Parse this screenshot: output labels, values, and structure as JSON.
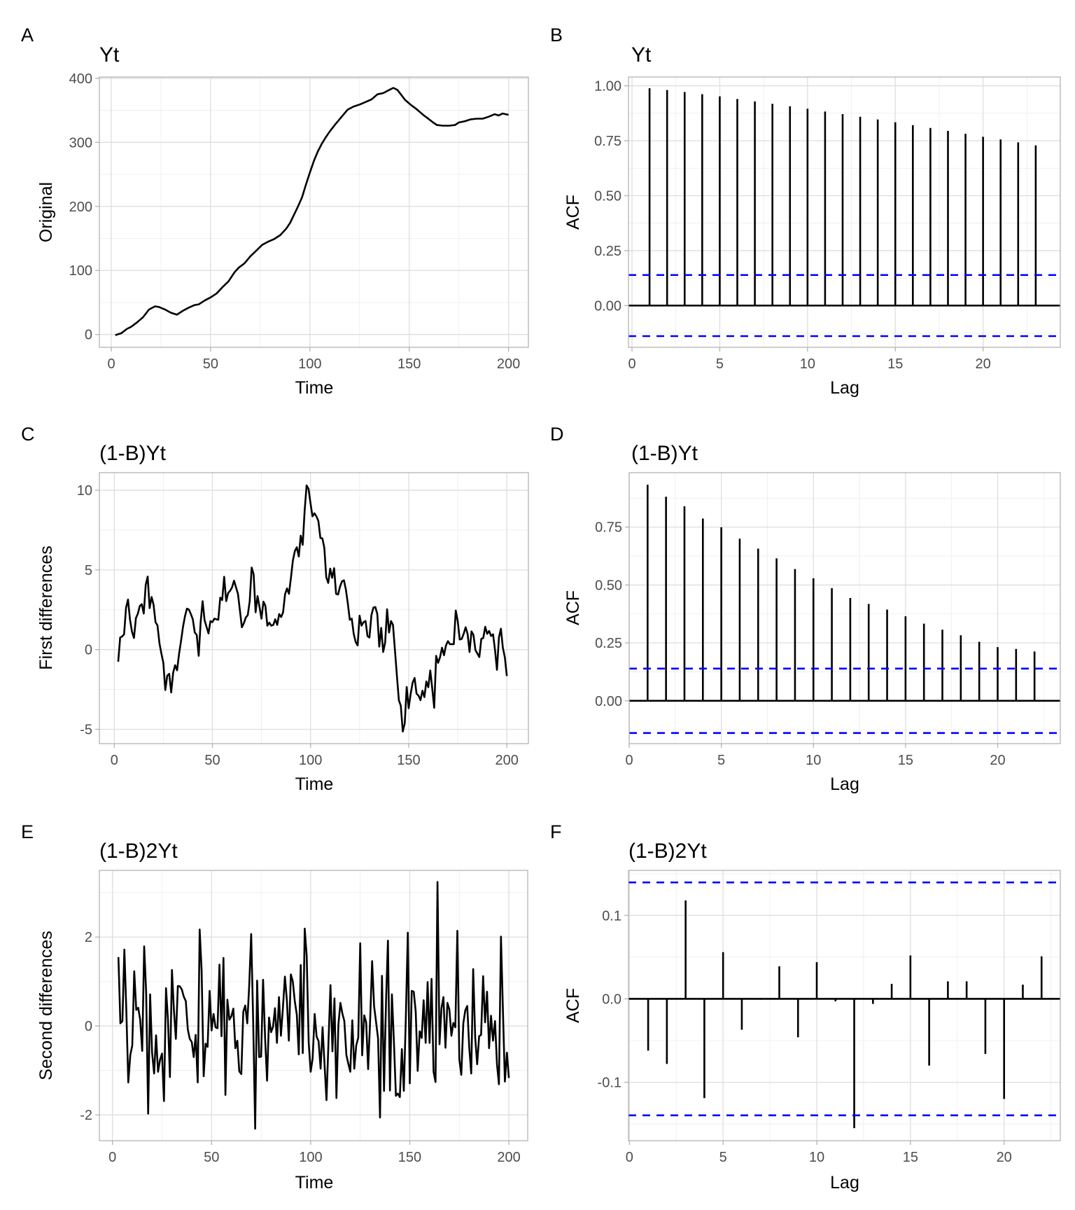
{
  "chart_data": [
    {
      "panel": "A",
      "type": "line",
      "title": "Yt",
      "xlabel": "Time",
      "ylabel": "Original",
      "xlim": [
        -6,
        210
      ],
      "ylim": [
        -20,
        402
      ],
      "xticks": [
        0,
        50,
        100,
        150,
        200
      ],
      "xtick_labels": [
        "0",
        "50",
        "100",
        "150",
        "200"
      ],
      "yticks": [
        0,
        100,
        200,
        300,
        400
      ],
      "ytick_labels": [
        "0",
        "100",
        "200",
        "300",
        "400"
      ],
      "grid": true,
      "x": [
        2,
        5,
        8,
        10,
        13,
        16,
        19,
        22,
        24,
        27,
        30,
        33,
        36,
        39,
        42,
        44,
        47,
        50,
        53,
        56,
        59,
        62,
        64,
        67,
        70,
        73,
        76,
        79,
        82,
        85,
        88,
        90,
        92,
        94,
        96,
        98,
        100,
        102,
        104,
        106,
        108,
        110,
        113,
        116,
        119,
        122,
        125,
        128,
        131,
        134,
        137,
        140,
        142,
        144,
        146,
        148,
        151,
        154,
        157,
        160,
        162,
        164,
        167,
        170,
        173,
        175,
        178,
        181,
        184,
        187,
        190,
        193,
        195,
        197,
        200
      ],
      "y": [
        -1,
        2,
        9,
        12,
        19,
        27,
        39,
        44,
        43,
        39,
        34,
        31,
        37,
        42,
        46,
        47,
        53,
        58,
        64,
        74,
        83,
        97,
        104,
        111,
        122,
        131,
        140,
        145,
        149,
        155,
        165,
        174,
        187,
        200,
        214,
        234,
        253,
        271,
        286,
        298,
        308,
        317,
        329,
        340,
        351,
        356,
        359,
        363,
        367,
        375,
        377,
        382,
        385,
        382,
        374,
        366,
        358,
        351,
        343,
        336,
        331,
        327,
        326,
        326,
        327,
        331,
        333,
        336,
        337,
        337,
        340,
        344,
        342,
        345,
        343
      ]
    },
    {
      "panel": "B",
      "type": "bar",
      "title": "Yt",
      "xlabel": "Lag",
      "ylabel": "ACF",
      "xlim": [
        -0.2,
        24.4
      ],
      "ylim": [
        -0.19,
        1.04
      ],
      "xticks": [
        0,
        5,
        10,
        15,
        20
      ],
      "xtick_labels": [
        "0",
        "5",
        "10",
        "15",
        "20"
      ],
      "yticks": [
        0,
        0.25,
        0.5,
        0.75,
        1.0
      ],
      "ytick_labels": [
        "0.00",
        "0.25",
        "0.50",
        "0.75",
        "1.00"
      ],
      "grid": true,
      "confidence_bound": 0.139,
      "confidence_color": "#0000ff",
      "lags": [
        1,
        2,
        3,
        4,
        5,
        6,
        7,
        8,
        9,
        10,
        11,
        12,
        13,
        14,
        15,
        16,
        17,
        18,
        19,
        20,
        21,
        22,
        23
      ],
      "values": [
        0.989,
        0.981,
        0.972,
        0.962,
        0.952,
        0.94,
        0.929,
        0.918,
        0.907,
        0.896,
        0.883,
        0.871,
        0.859,
        0.847,
        0.834,
        0.821,
        0.808,
        0.795,
        0.782,
        0.768,
        0.756,
        0.743,
        0.729
      ]
    },
    {
      "panel": "C",
      "type": "line",
      "title": "(1-B)Yt",
      "xlabel": "Time",
      "ylabel": "First differences",
      "xlim": [
        -7.6,
        211
      ],
      "ylim": [
        -5.9,
        11.1
      ],
      "xticks": [
        0,
        50,
        100,
        150,
        200
      ],
      "xtick_labels": [
        "0",
        "50",
        "100",
        "150",
        "200"
      ],
      "yticks": [
        -5,
        0,
        5,
        10
      ],
      "ytick_labels": [
        "-5",
        "0",
        "5",
        "10"
      ],
      "grid": true,
      "x": [
        2,
        3,
        4,
        5,
        6,
        7,
        8,
        9,
        10,
        11,
        12,
        13,
        14,
        15,
        16,
        17,
        18,
        19,
        20,
        21,
        22,
        23,
        24,
        25,
        26,
        27,
        28,
        29,
        30,
        31,
        32,
        33,
        34,
        35,
        36,
        37,
        38,
        39,
        40,
        41,
        42,
        43,
        44,
        45,
        46,
        47,
        48,
        49,
        50,
        51,
        52,
        53,
        54,
        55,
        56,
        57,
        58,
        59,
        60,
        61,
        62,
        63,
        64,
        65,
        66,
        67,
        68,
        69,
        70,
        71,
        72,
        73,
        74,
        75,
        76,
        77,
        78,
        79,
        80,
        81,
        82,
        83,
        84,
        85,
        86,
        87,
        88,
        89,
        90,
        91,
        92,
        93,
        94,
        95,
        96,
        97,
        98,
        99,
        100,
        101,
        102,
        103,
        104,
        105,
        106,
        107,
        108,
        109,
        110,
        111,
        112,
        113,
        114,
        115,
        116,
        117,
        118,
        119,
        120,
        121,
        122,
        123,
        124,
        125,
        126,
        127,
        128,
        129,
        130,
        131,
        132,
        133,
        134,
        135,
        136,
        137,
        138,
        139,
        140,
        141,
        142,
        143,
        144,
        145,
        146,
        147,
        148,
        149,
        150,
        151,
        152,
        153,
        154,
        155,
        156,
        157,
        158,
        159,
        160,
        161,
        162,
        163,
        164,
        165,
        166,
        167,
        168,
        169,
        170,
        171,
        172,
        173,
        174,
        175,
        176,
        177,
        178,
        179,
        180,
        181,
        182,
        183,
        184,
        185,
        186,
        187,
        188,
        189,
        190,
        191,
        192,
        193,
        194,
        195,
        196,
        197,
        198,
        199,
        200
      ],
      "y": [
        -0.76,
        0.76,
        0.82,
        0.96,
        2.63,
        3.14,
        1.9,
        1.14,
        0.73,
        1.97,
        2.26,
        2.74,
        2.85,
        2.26,
        4.06,
        4.58,
        2.6,
        3.3,
        2.82,
        1.72,
        1.52,
        0.41,
        -0.25,
        -0.83,
        -2.54,
        -1.63,
        -1.52,
        -2.69,
        -1.45,
        -0.98,
        -1.3,
        -0.25,
        0.55,
        1.43,
        2.09,
        2.57,
        2.51,
        2.23,
        1.9,
        1.07,
        0.92,
        -0.39,
        1.72,
        3.04,
        1.84,
        1.43,
        1.02,
        1.79,
        1.72,
        1.94,
        1.9,
        1.87,
        3.26,
        3.11,
        4.57,
        3.04,
        3.55,
        3.69,
        3.91,
        4.32,
        3.91,
        3.5,
        2.45,
        1.4,
        1.65,
        2.01,
        2.16,
        3.04,
        5.15,
        4.72,
        2.34,
        3.36,
        2.67,
        1.94,
        3.01,
        2.74,
        1.5,
        1.69,
        1.5,
        1.55,
        1.9,
        1.55,
        2.23,
        2.04,
        2.34,
        3.47,
        3.84,
        3.5,
        4.5,
        5.59,
        6.18,
        6.42,
        5.84,
        7.15,
        6.57,
        8.73,
        10.3,
        10.07,
        9.17,
        8.36,
        8.55,
        8.36,
        8.07,
        7.0,
        6.98,
        6.39,
        4.53,
        4.18,
        5.08,
        4.5,
        5.11,
        3.5,
        3.45,
        3.94,
        4.28,
        4.35,
        3.77,
        2.89,
        1.87,
        1.94,
        0.99,
        0.48,
        0.26,
        2.13,
        1.5,
        1.72,
        1.79,
        0.85,
        0.76,
        2.16,
        2.63,
        2.67,
        2.23,
        0.19,
        1.36,
        -0.15,
        0.44,
        2.53,
        1.07,
        1.79,
        1.55,
        -0.03,
        -1.63,
        -3.17,
        -3.53,
        -5.14,
        -4.63,
        -2.34,
        -3.68,
        -2.8,
        -2.07,
        -1.78,
        -2.77,
        -2.88,
        -3.17,
        -2.58,
        -2.98,
        -2.0,
        -2.36,
        -1.31,
        -2.44,
        -3.65,
        -0.39,
        -0.83,
        -0.47,
        0.12,
        -0.35,
        0.26,
        0.53,
        0.34,
        0.34,
        0.34,
        2.45,
        1.79,
        0.63,
        0.67,
        0.99,
        1.4,
        0.99,
        -0.15,
        1.14,
        0.92,
        -0.03,
        -0.25,
        -0.47,
        0.67,
        0.73,
        1.43,
        0.99,
        1.17,
        0.85,
        0.96,
        -0.03,
        -1.27,
        0.77,
        1.31,
        0.12,
        -0.47,
        -1.66
      ]
    },
    {
      "panel": "D",
      "type": "bar",
      "title": "(1-B)Yt",
      "xlabel": "Lag",
      "ylabel": "ACF",
      "xlim": [
        0,
        23.4
      ],
      "ylim": [
        -0.185,
        0.985
      ],
      "xticks": [
        0,
        5,
        10,
        15,
        20
      ],
      "xtick_labels": [
        "0",
        "5",
        "10",
        "15",
        "20"
      ],
      "yticks": [
        0,
        0.25,
        0.5,
        0.75
      ],
      "ytick_labels": [
        "0.00",
        "0.25",
        "0.50",
        "0.75"
      ],
      "grid": true,
      "confidence_bound": 0.139,
      "confidence_color": "#0000ff",
      "lags": [
        1,
        2,
        3,
        4,
        5,
        6,
        7,
        8,
        9,
        10,
        11,
        12,
        13,
        14,
        15,
        16,
        17,
        18,
        19,
        20,
        21,
        22
      ],
      "values": [
        0.933,
        0.881,
        0.84,
        0.787,
        0.749,
        0.7,
        0.657,
        0.615,
        0.569,
        0.529,
        0.486,
        0.444,
        0.418,
        0.394,
        0.365,
        0.333,
        0.307,
        0.283,
        0.255,
        0.232,
        0.224,
        0.213
      ]
    },
    {
      "panel": "E",
      "type": "line",
      "title": "(1-B)2Yt",
      "xlabel": "Time",
      "ylabel": "Second differences",
      "xlim": [
        -6.6,
        209.5
      ],
      "ylim": [
        -2.58,
        3.5
      ],
      "xticks": [
        0,
        50,
        100,
        150,
        200
      ],
      "xtick_labels": [
        "0",
        "50",
        "100",
        "150",
        "200"
      ],
      "yticks": [
        -2,
        0,
        2
      ],
      "ytick_labels": [
        "-2",
        "0",
        "2"
      ],
      "grid": true,
      "x": [
        3,
        4,
        5,
        6,
        7,
        8,
        9,
        10,
        11,
        12,
        13,
        14,
        15,
        16,
        17,
        18,
        19,
        20,
        21,
        22,
        23,
        24,
        25,
        26,
        27,
        28,
        29,
        30,
        31,
        32,
        33,
        34,
        35,
        36,
        37,
        38,
        39,
        40,
        41,
        42,
        43,
        44,
        45,
        46,
        47,
        48,
        49,
        50,
        51,
        52,
        53,
        54,
        55,
        56,
        57,
        58,
        59,
        60,
        61,
        62,
        63,
        64,
        65,
        66,
        67,
        68,
        69,
        70,
        71,
        72,
        73,
        74,
        75,
        76,
        77,
        78,
        79,
        80,
        81,
        82,
        83,
        84,
        85,
        86,
        87,
        88,
        89,
        90,
        91,
        92,
        93,
        94,
        95,
        96,
        97,
        98,
        99,
        100,
        101,
        102,
        103,
        104,
        105,
        106,
        107,
        108,
        109,
        110,
        111,
        112,
        113,
        114,
        115,
        116,
        117,
        118,
        119,
        120,
        121,
        122,
        123,
        124,
        125,
        126,
        127,
        128,
        129,
        130,
        131,
        132,
        133,
        134,
        135,
        136,
        137,
        138,
        139,
        140,
        141,
        142,
        143,
        144,
        145,
        146,
        147,
        148,
        149,
        150,
        151,
        152,
        153,
        154,
        155,
        156,
        157,
        158,
        159,
        160,
        161,
        162,
        163,
        164,
        165,
        166,
        167,
        168,
        169,
        170,
        171,
        172,
        173,
        174,
        175,
        176,
        177,
        178,
        179,
        180,
        181,
        182,
        183,
        184,
        185,
        186,
        187,
        188,
        189,
        190,
        191,
        192,
        193,
        194,
        195,
        196,
        197,
        198,
        199,
        200
      ],
      "y": [
        1.55,
        0.06,
        0.11,
        1.72,
        0.35,
        -1.27,
        -0.65,
        -0.44,
        1.23,
        0.36,
        0.41,
        0.14,
        -0.56,
        1.79,
        0.77,
        -1.97,
        0.71,
        -0.6,
        -1.07,
        -0.21,
        -1.03,
        -0.76,
        -0.62,
        -1.69,
        0.85,
        0.14,
        -1.15,
        1.26,
        0.35,
        -0.29,
        0.9,
        0.89,
        0.82,
        0.66,
        0.56,
        -0.07,
        -0.29,
        -0.36,
        -0.7,
        -0.2,
        -1.27,
        2.17,
        1.24,
        -1.13,
        -0.4,
        -0.47,
        0.79,
        -0.1,
        0.27,
        -0.03,
        -0.05,
        1.38,
        -0.23,
        1.53,
        -1.55,
        0.59,
        0.14,
        0.22,
        0.39,
        -0.5,
        -0.33,
        -1.02,
        -1.08,
        0.32,
        0.46,
        0.06,
        0.92,
        2.07,
        0.08,
        -2.31,
        1.02,
        -0.7,
        -0.69,
        1.04,
        -0.28,
        -1.23,
        0.19,
        -0.14,
        -0.02,
        0.4,
        -0.38,
        0.65,
        -0.22,
        0.4,
        1.11,
        0.58,
        -0.33,
        1.16,
        1.0,
        0.56,
        0.25,
        -0.64,
        1.37,
        -0.61,
        2.19,
        1.58,
        -0.38,
        -1.03,
        -0.73,
        0.27,
        -0.24,
        -0.34,
        -0.96,
        -0.03,
        -0.86,
        -1.67,
        -0.34,
        0.92,
        -0.57,
        0.62,
        -1.62,
        0.03,
        0.52,
        0.28,
        0.11,
        -0.65,
        -0.85,
        -1.03,
        0.13,
        -0.96,
        -0.44,
        -0.26,
        1.86,
        -0.66,
        0.24,
        0.08,
        -0.97,
        0.14,
        1.46,
        0.45,
        0.08,
        -0.28,
        -2.06,
        1.13,
        -1.46,
        0.51,
        1.92,
        -1.45,
        0.71,
        -0.34,
        -1.57,
        -1.52,
        -1.6,
        -0.52,
        -1.46,
        0.14,
        2.1,
        -1.29,
        0.79,
        0.77,
        0.32,
        -1.01,
        -0.12,
        -0.27,
        0.58,
        -0.38,
        0.99,
        -0.38,
        1.06,
        -1.03,
        -1.26,
        3.24,
        -0.41,
        0.4,
        0.65,
        -0.49,
        0.52,
        0.37,
        -0.22,
        0.07,
        -0.03,
        2.14,
        -0.75,
        -1.1,
        0.06,
        0.35,
        0.45,
        -0.49,
        -1.07,
        1.28,
        -0.27,
        -0.86,
        -0.23,
        -0.2,
        1.12,
        0.08,
        0.77,
        -0.5,
        0.23,
        -0.33,
        0.11,
        -0.86,
        -1.31,
        2.01,
        0.35,
        -1.25,
        -0.6,
        -1.17
      ]
    },
    {
      "panel": "F",
      "type": "bar",
      "title": "(1-B)2Yt",
      "xlabel": "Lag",
      "ylabel": "ACF",
      "xlim": [
        -0.05,
        23.0
      ],
      "ylim": [
        -0.17,
        0.154
      ],
      "xticks": [
        0,
        5,
        10,
        15,
        20
      ],
      "xtick_labels": [
        "0",
        "5",
        "10",
        "15",
        "20"
      ],
      "yticks": [
        -0.1,
        0,
        0.1
      ],
      "ytick_labels": [
        "-0.1",
        "0.0",
        "0.1"
      ],
      "grid": true,
      "confidence_bound": 0.1396,
      "confidence_color": "#0000ff",
      "lags": [
        1,
        2,
        3,
        4,
        5,
        6,
        7,
        8,
        9,
        10,
        11,
        12,
        13,
        14,
        15,
        16,
        17,
        18,
        19,
        20,
        21,
        22
      ],
      "values": [
        -0.062,
        -0.078,
        0.118,
        -0.119,
        0.056,
        -0.037,
        -0.001,
        0.039,
        -0.046,
        0.044,
        -0.003,
        -0.155,
        -0.006,
        0.018,
        0.052,
        -0.08,
        0.021,
        0.021,
        -0.066,
        -0.12,
        0.017,
        0.051
      ]
    }
  ]
}
